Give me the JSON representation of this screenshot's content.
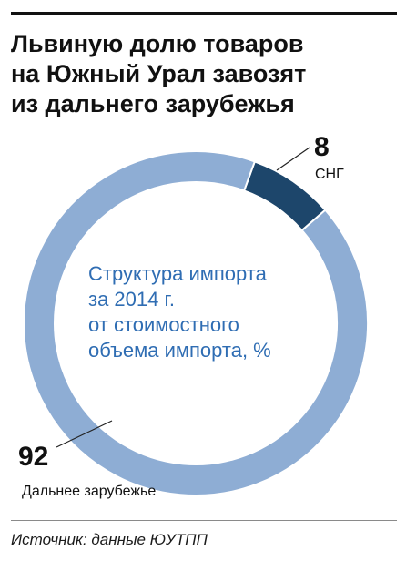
{
  "title_lines": [
    "Львиную долю товаров",
    "на Южный Урал завозят",
    "из дальнего зарубежья"
  ],
  "chart_data": {
    "type": "pie",
    "style": "donut",
    "categories": [
      "СНГ",
      "Дальнее зарубежье"
    ],
    "values": [
      8,
      92
    ],
    "colors": [
      "#1d466b",
      "#8eadd4"
    ],
    "center_label_lines": [
      "Структура импорта",
      "за 2014 г.",
      "от стоимостного",
      "объема импорта, %"
    ],
    "center_label_color": "#2f6db3",
    "legend": "inline-callouts"
  },
  "source": "Источник: данные ЮУТПП"
}
